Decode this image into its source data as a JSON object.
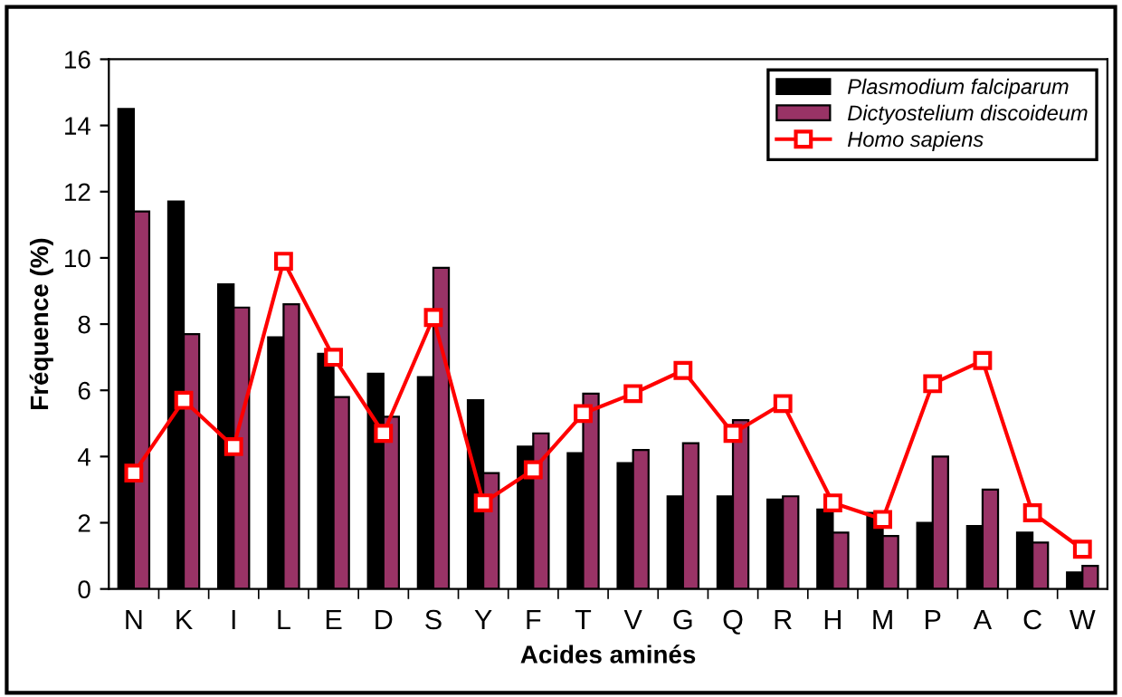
{
  "chart_data": {
    "type": "bar",
    "xlabel": "Acides aminés",
    "ylabel": "Fréquence (%)",
    "categories": [
      "N",
      "K",
      "I",
      "L",
      "E",
      "D",
      "S",
      "Y",
      "F",
      "T",
      "V",
      "G",
      "Q",
      "R",
      "H",
      "M",
      "P",
      "A",
      "C",
      "W"
    ],
    "series": [
      {
        "name": "Plasmodium falciparum",
        "color": "#000000",
        "values": [
          14.5,
          11.7,
          9.2,
          7.6,
          7.1,
          6.5,
          6.4,
          5.7,
          4.3,
          4.1,
          3.8,
          2.8,
          2.8,
          2.7,
          2.4,
          2.3,
          2.0,
          1.9,
          1.7,
          0.5
        ]
      },
      {
        "name": "Dictyostelium discoideum",
        "color": "#993366",
        "values": [
          11.4,
          7.7,
          8.5,
          8.6,
          5.8,
          5.2,
          9.7,
          3.5,
          4.7,
          5.9,
          4.2,
          4.4,
          5.1,
          2.8,
          1.7,
          1.6,
          4.0,
          3.0,
          1.4,
          0.7
        ]
      },
      {
        "name": "Homo sapiens",
        "type": "line",
        "color": "#ff0000",
        "marker": "square",
        "values": [
          3.5,
          5.7,
          4.3,
          9.9,
          7.0,
          4.7,
          8.2,
          2.6,
          3.6,
          5.3,
          5.9,
          6.6,
          4.7,
          5.6,
          2.6,
          2.1,
          6.2,
          6.9,
          2.3,
          1.2
        ]
      }
    ],
    "ylim": [
      0,
      16
    ],
    "yticks": [
      0,
      2,
      4,
      6,
      8,
      10,
      12,
      14,
      16
    ],
    "grid": false,
    "legend": "top right"
  }
}
